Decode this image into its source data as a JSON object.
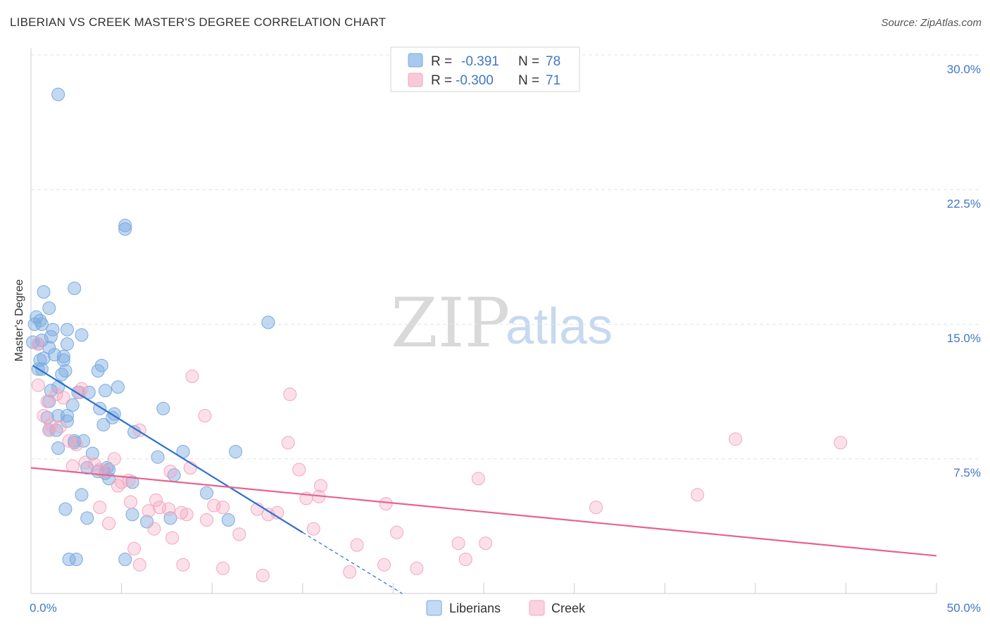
{
  "header": {
    "title": "LIBERIAN VS CREEK MASTER'S DEGREE CORRELATION CHART",
    "source": "Source: ZipAtlas.com"
  },
  "watermark": {
    "zip": "ZIP",
    "atlas": "atlas"
  },
  "legend": {
    "rows": [
      {
        "r_label": "R =",
        "r_value": "-0.391",
        "n_label": "N =",
        "n_value": "78",
        "color": "#a8c8f0"
      },
      {
        "r_label": "R =",
        "r_value": "-0.300",
        "n_label": "N =",
        "n_value": "71",
        "color": "#f7b8cb"
      }
    ]
  },
  "bottom_legend": {
    "liberians": "Liberians",
    "creek": "Creek"
  },
  "chart_data": {
    "type": "scatter",
    "title": "LIBERIAN VS CREEK MASTER'S DEGREE CORRELATION CHART",
    "xlabel": "",
    "ylabel": "Master's Degree",
    "xlim": [
      0,
      50
    ],
    "ylim": [
      0,
      31
    ],
    "x_tick_labels": [
      "0.0%",
      "50.0%"
    ],
    "y_ticks": [
      7.5,
      15.0,
      22.5,
      30.0
    ],
    "y_tick_labels": [
      "7.5%",
      "15.0%",
      "22.5%",
      "30.0%"
    ],
    "series": [
      {
        "name": "Liberians",
        "color": "#7aaae0",
        "line_color": "#2b6fd1",
        "r": -0.391,
        "n": 78,
        "trend": {
          "x0": 0.1,
          "y0": 12.7,
          "x1": 15.0,
          "y1": 3.4,
          "dash_to_x": 20.5,
          "dash_to_y": 0.0
        },
        "points": [
          [
            1.5,
            27.8
          ],
          [
            5.2,
            20.5
          ],
          [
            5.2,
            20.3
          ],
          [
            13.1,
            15.1
          ],
          [
            2.4,
            17.0
          ],
          [
            0.7,
            16.8
          ],
          [
            1.0,
            15.9
          ],
          [
            0.3,
            15.4
          ],
          [
            0.5,
            15.2
          ],
          [
            0.6,
            15.0
          ],
          [
            0.2,
            15.0
          ],
          [
            1.2,
            14.7
          ],
          [
            2.0,
            14.7
          ],
          [
            2.8,
            14.4
          ],
          [
            1.1,
            14.3
          ],
          [
            0.6,
            14.1
          ],
          [
            0.4,
            13.9
          ],
          [
            1.0,
            13.7
          ],
          [
            2.0,
            13.9
          ],
          [
            0.5,
            13.0
          ],
          [
            0.7,
            13.1
          ],
          [
            1.3,
            13.3
          ],
          [
            1.8,
            13.2
          ],
          [
            1.8,
            13.0
          ],
          [
            3.9,
            12.7
          ],
          [
            3.7,
            12.4
          ],
          [
            0.6,
            12.5
          ],
          [
            1.9,
            12.4
          ],
          [
            1.7,
            12.2
          ],
          [
            1.1,
            11.3
          ],
          [
            1.5,
            11.5
          ],
          [
            2.6,
            11.2
          ],
          [
            3.2,
            11.2
          ],
          [
            4.1,
            11.3
          ],
          [
            4.8,
            11.5
          ],
          [
            1.0,
            10.7
          ],
          [
            2.3,
            10.5
          ],
          [
            3.8,
            10.3
          ],
          [
            4.6,
            10.0
          ],
          [
            4.5,
            9.8
          ],
          [
            7.3,
            10.3
          ],
          [
            0.9,
            9.8
          ],
          [
            1.5,
            9.9
          ],
          [
            2.0,
            9.9
          ],
          [
            4.0,
            9.4
          ],
          [
            1.0,
            9.1
          ],
          [
            1.4,
            9.1
          ],
          [
            5.7,
            9.0
          ],
          [
            2.4,
            8.5
          ],
          [
            2.4,
            8.4
          ],
          [
            2.9,
            8.5
          ],
          [
            1.5,
            8.1
          ],
          [
            3.4,
            7.8
          ],
          [
            7.0,
            7.6
          ],
          [
            8.4,
            7.9
          ],
          [
            11.3,
            7.9
          ],
          [
            3.1,
            7.0
          ],
          [
            4.2,
            7.0
          ],
          [
            4.3,
            6.9
          ],
          [
            4.1,
            6.7
          ],
          [
            4.3,
            6.4
          ],
          [
            5.6,
            6.2
          ],
          [
            7.9,
            6.6
          ],
          [
            2.8,
            5.5
          ],
          [
            9.7,
            5.6
          ],
          [
            1.9,
            4.7
          ],
          [
            3.1,
            4.2
          ],
          [
            5.6,
            4.4
          ],
          [
            6.4,
            4.0
          ],
          [
            7.7,
            4.2
          ],
          [
            10.9,
            4.1
          ],
          [
            2.1,
            1.9
          ],
          [
            2.5,
            1.9
          ],
          [
            5.2,
            1.9
          ],
          [
            0.1,
            14.0
          ],
          [
            0.4,
            12.5
          ],
          [
            2.0,
            9.6
          ],
          [
            3.7,
            6.8
          ]
        ]
      },
      {
        "name": "Creek",
        "color": "#f4a6bf",
        "line_color": "#e8638f",
        "r": -0.3,
        "n": 71,
        "trend": {
          "x0": 0.0,
          "y0": 7.0,
          "x1": 50.0,
          "y1": 2.1
        },
        "points": [
          [
            0.4,
            11.6
          ],
          [
            0.4,
            13.9
          ],
          [
            2.8,
            11.4
          ],
          [
            8.9,
            12.1
          ],
          [
            14.3,
            11.1
          ],
          [
            1.4,
            11.1
          ],
          [
            2.7,
            11.2
          ],
          [
            0.9,
            10.7
          ],
          [
            1.8,
            10.9
          ],
          [
            1.1,
            9.4
          ],
          [
            1.6,
            9.3
          ],
          [
            1.0,
            9.1
          ],
          [
            0.7,
            9.9
          ],
          [
            9.6,
            9.9
          ],
          [
            6.0,
            9.1
          ],
          [
            2.1,
            8.5
          ],
          [
            2.5,
            8.3
          ],
          [
            14.2,
            8.4
          ],
          [
            38.9,
            8.6
          ],
          [
            44.7,
            8.4
          ],
          [
            4.6,
            7.5
          ],
          [
            3.0,
            7.3
          ],
          [
            3.5,
            7.2
          ],
          [
            2.3,
            7.1
          ],
          [
            4.1,
            6.8
          ],
          [
            3.8,
            6.9
          ],
          [
            7.7,
            6.8
          ],
          [
            8.8,
            7.0
          ],
          [
            14.8,
            6.9
          ],
          [
            24.7,
            6.4
          ],
          [
            5.0,
            6.2
          ],
          [
            5.4,
            6.3
          ],
          [
            4.8,
            6.0
          ],
          [
            16.0,
            6.0
          ],
          [
            15.2,
            5.3
          ],
          [
            15.9,
            5.4
          ],
          [
            19.6,
            5.0
          ],
          [
            3.8,
            4.8
          ],
          [
            5.5,
            5.1
          ],
          [
            6.9,
            5.2
          ],
          [
            7.1,
            4.8
          ],
          [
            10.1,
            4.9
          ],
          [
            10.6,
            4.8
          ],
          [
            12.5,
            4.7
          ],
          [
            13.1,
            4.4
          ],
          [
            13.6,
            4.5
          ],
          [
            6.5,
            4.6
          ],
          [
            7.6,
            4.7
          ],
          [
            8.3,
            4.5
          ],
          [
            8.6,
            4.4
          ],
          [
            31.2,
            4.8
          ],
          [
            36.8,
            5.5
          ],
          [
            4.3,
            3.9
          ],
          [
            9.7,
            4.1
          ],
          [
            6.8,
            3.6
          ],
          [
            15.6,
            3.6
          ],
          [
            11.5,
            3.3
          ],
          [
            20.2,
            3.4
          ],
          [
            7.8,
            3.1
          ],
          [
            5.7,
            2.5
          ],
          [
            18.0,
            2.7
          ],
          [
            23.6,
            2.8
          ],
          [
            25.1,
            2.8
          ],
          [
            6.0,
            1.6
          ],
          [
            8.4,
            1.6
          ],
          [
            10.6,
            1.4
          ],
          [
            24.0,
            1.9
          ],
          [
            19.5,
            1.6
          ],
          [
            17.6,
            1.2
          ],
          [
            12.8,
            1.0
          ],
          [
            21.3,
            1.4
          ]
        ]
      }
    ]
  }
}
